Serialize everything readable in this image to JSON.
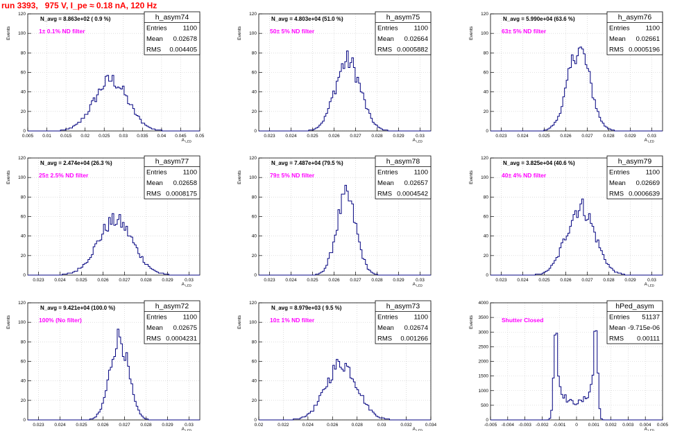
{
  "page_title": "run 3393,   975 V, I_pe ≈ 0.18 nA, 120 Hz",
  "colors": {
    "line": "#00007f",
    "annotation": "#ff00ff",
    "title": "#ff0000",
    "grid": "#c8c8c8"
  },
  "chart_data": [
    {
      "type": "histogram",
      "name": "h_asym74",
      "entries": "1100",
      "mean": "0.02678",
      "rms": "0.004405",
      "navg": "N_avg = 8.863e+02 ( 0.9 %)",
      "note": "1± 0.1% ND filter",
      "ylabel": "Events",
      "xlabel": "A_LED",
      "ylim": [
        0,
        120
      ],
      "yticks": [
        0,
        20,
        40,
        60,
        80,
        100,
        120
      ],
      "xlim": [
        0.005,
        0.05
      ],
      "xticks": [
        0.005,
        0.01,
        0.015,
        0.02,
        0.025,
        0.03,
        0.035,
        0.04,
        0.045,
        0.05
      ],
      "xticklabels": [
        "0.005",
        "0.01",
        "0.015",
        "0.02",
        "0.025",
        "0.03",
        "0.035",
        "0.04",
        "0.045",
        "0.05"
      ],
      "center": 0.02678,
      "sigma": 0.004405,
      "peak": 52
    },
    {
      "type": "histogram",
      "name": "h_asym75",
      "entries": "1100",
      "mean": "0.02664",
      "rms": "0.0005882",
      "navg": "N_avg = 4.803e+04 (51.0 %)",
      "note": "50± 5% ND filter",
      "ylabel": "Events",
      "xlabel": "A_LED",
      "ylim": [
        0,
        120
      ],
      "yticks": [
        0,
        20,
        40,
        60,
        80,
        100,
        120
      ],
      "xlim": [
        0.0225,
        0.0305
      ],
      "xticks": [
        0.023,
        0.024,
        0.025,
        0.026,
        0.027,
        0.028,
        0.029,
        0.03
      ],
      "xticklabels": [
        "0.023",
        "0.024",
        "0.025",
        "0.026",
        "0.027",
        "0.028",
        "0.029",
        "0.03"
      ],
      "center": 0.02664,
      "sigma": 0.0005882,
      "peak": 72
    },
    {
      "type": "histogram",
      "name": "h_asym76",
      "entries": "1100",
      "mean": "0.02661",
      "rms": "0.0005196",
      "navg": "N_avg = 5.990e+04 (63.6 %)",
      "note": "63± 5% ND filter",
      "ylabel": "Events",
      "xlabel": "A_LED",
      "ylim": [
        0,
        120
      ],
      "yticks": [
        0,
        20,
        40,
        60,
        80,
        100,
        120
      ],
      "xlim": [
        0.0225,
        0.0305
      ],
      "xticks": [
        0.023,
        0.024,
        0.025,
        0.026,
        0.027,
        0.028,
        0.029,
        0.03
      ],
      "xticklabels": [
        "0.023",
        "0.024",
        "0.025",
        "0.026",
        "0.027",
        "0.028",
        "0.029",
        "0.03"
      ],
      "center": 0.02661,
      "sigma": 0.0005196,
      "peak": 84
    },
    {
      "type": "histogram",
      "name": "h_asym77",
      "entries": "1100",
      "mean": "0.02658",
      "rms": "0.0008175",
      "navg": "N_avg = 2.474e+04 (26.3 %)",
      "note": "25± 2.5% ND filter",
      "ylabel": "Events",
      "xlabel": "A_LED",
      "ylim": [
        0,
        120
      ],
      "yticks": [
        0,
        20,
        40,
        60,
        80,
        100,
        120
      ],
      "xlim": [
        0.0225,
        0.0305
      ],
      "xticks": [
        0.023,
        0.024,
        0.025,
        0.026,
        0.027,
        0.028,
        0.029,
        0.03
      ],
      "xticklabels": [
        "0.023",
        "0.024",
        "0.025",
        "0.026",
        "0.027",
        "0.028",
        "0.029",
        "0.03"
      ],
      "center": 0.02658,
      "sigma": 0.0008175,
      "peak": 56
    },
    {
      "type": "histogram",
      "name": "h_asym78",
      "entries": "1100",
      "mean": "0.02657",
      "rms": "0.0004542",
      "navg": "N_avg = 7.487e+04 (79.5 %)",
      "note": "79± 5% ND filter",
      "ylabel": "Events",
      "xlabel": "A_LED",
      "ylim": [
        0,
        120
      ],
      "yticks": [
        0,
        20,
        40,
        60,
        80,
        100,
        120
      ],
      "xlim": [
        0.0225,
        0.0305
      ],
      "xticks": [
        0.023,
        0.024,
        0.025,
        0.026,
        0.027,
        0.028,
        0.029,
        0.03
      ],
      "xticklabels": [
        "0.023",
        "0.024",
        "0.025",
        "0.026",
        "0.027",
        "0.028",
        "0.029",
        "0.03"
      ],
      "center": 0.02657,
      "sigma": 0.0004542,
      "peak": 80
    },
    {
      "type": "histogram",
      "name": "h_asym79",
      "entries": "1100",
      "mean": "0.02669",
      "rms": "0.0006639",
      "navg": "N_avg = 3.825e+04 (40.6 %)",
      "note": "40± 4% ND filter",
      "ylabel": "Events",
      "xlabel": "A_LED",
      "ylim": [
        0,
        120
      ],
      "yticks": [
        0,
        20,
        40,
        60,
        80,
        100,
        120
      ],
      "xlim": [
        0.0225,
        0.0305
      ],
      "xticks": [
        0.023,
        0.024,
        0.025,
        0.026,
        0.027,
        0.028,
        0.029,
        0.03
      ],
      "xticklabels": [
        "0.023",
        "0.024",
        "0.025",
        "0.026",
        "0.027",
        "0.028",
        "0.029",
        "0.03"
      ],
      "center": 0.02669,
      "sigma": 0.0006639,
      "peak": 70
    },
    {
      "type": "histogram",
      "name": "h_asym72",
      "entries": "1100",
      "mean": "0.02675",
      "rms": "0.0004231",
      "navg": "N_avg = 9.421e+04 (100.0 %)",
      "note": "100% (No filter)",
      "ylabel": "Events",
      "xlabel": "A_LED",
      "ylim": [
        0,
        120
      ],
      "yticks": [
        0,
        20,
        40,
        60,
        80,
        100,
        120
      ],
      "xlim": [
        0.0225,
        0.0305
      ],
      "xticks": [
        0.023,
        0.024,
        0.025,
        0.026,
        0.027,
        0.028,
        0.029,
        0.03
      ],
      "xticklabels": [
        "0.023",
        "0.024",
        "0.025",
        "0.026",
        "0.027",
        "0.028",
        "0.029",
        "0.03"
      ],
      "center": 0.02675,
      "sigma": 0.0004231,
      "peak": 85
    },
    {
      "type": "histogram",
      "name": "h_asym73",
      "entries": "1100",
      "mean": "0.02674",
      "rms": "0.001266",
      "navg": "N_avg = 8.979e+03 ( 9.5 %)",
      "note": "10± 1% ND filter",
      "ylabel": "Events",
      "xlabel": "A_LED",
      "ylim": [
        0,
        120
      ],
      "yticks": [
        0,
        20,
        40,
        60,
        80,
        100,
        120
      ],
      "xlim": [
        0.02,
        0.034
      ],
      "xticks": [
        0.02,
        0.022,
        0.024,
        0.026,
        0.028,
        0.03,
        0.032,
        0.034
      ],
      "xticklabels": [
        "0.02",
        "0.022",
        "0.024",
        "0.026",
        "0.028",
        "0.03",
        "0.032",
        "0.034"
      ],
      "center": 0.02674,
      "sigma": 0.001266,
      "peak": 58
    },
    {
      "type": "histogram",
      "name": "hPed_asym",
      "entries": "51137",
      "mean": "-9.715e-06",
      "rms": "0.00111",
      "navg": "",
      "note": "Shutter Closed",
      "ylabel": "Events",
      "xlabel": "A_LED",
      "ylim": [
        0,
        4000
      ],
      "yticks": [
        0,
        500,
        1000,
        1500,
        2000,
        2500,
        3000,
        3500,
        4000
      ],
      "xlim": [
        -0.005,
        0.005
      ],
      "xticks": [
        -0.005,
        -0.004,
        -0.003,
        -0.002,
        -0.001,
        0,
        0.001,
        0.002,
        0.003,
        0.004,
        0.005
      ],
      "xticklabels": [
        "-0.005",
        "-0.004",
        "-0.003",
        "-0.002",
        "-0.001",
        "0",
        "0.001",
        "0.002",
        "0.003",
        "0.004",
        "0.005"
      ],
      "bimodal": true,
      "peak_left": -0.0012,
      "peak_right": 0.0011,
      "peak": 3350,
      "valley": 600
    }
  ]
}
